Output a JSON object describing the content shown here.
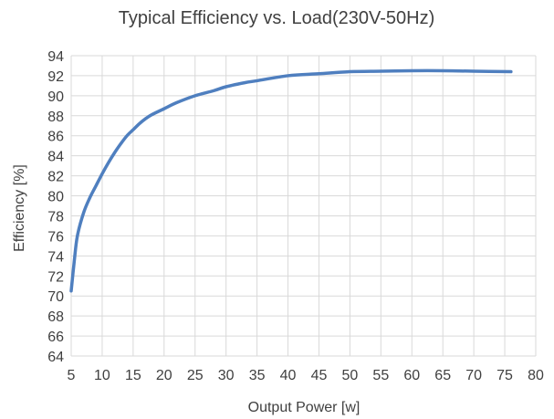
{
  "chart_data": {
    "type": "line",
    "title": "Typical Efficiency vs. Load(230V-50Hz)",
    "xlabel": "Output Power [w]",
    "ylabel": "Efficiency [%]",
    "xlim": [
      5,
      80
    ],
    "ylim": [
      64,
      94
    ],
    "x_ticks": [
      5,
      10,
      15,
      20,
      25,
      30,
      35,
      40,
      45,
      50,
      55,
      60,
      65,
      70,
      75,
      80
    ],
    "y_ticks": [
      64,
      66,
      68,
      70,
      72,
      74,
      76,
      78,
      80,
      82,
      84,
      86,
      88,
      90,
      92,
      94
    ],
    "grid": true,
    "line_color": "#4f7fbf",
    "series": [
      {
        "x": [
          5,
          5.5,
          6,
          7,
          8,
          9,
          10,
          11,
          12,
          13,
          14,
          15,
          16,
          17,
          18,
          20,
          22,
          25,
          28,
          30,
          33,
          35,
          40,
          45,
          50,
          55,
          60,
          65,
          70,
          76
        ],
        "y": [
          70.5,
          73.5,
          76.0,
          78.3,
          79.8,
          81.0,
          82.2,
          83.3,
          84.3,
          85.2,
          86.0,
          86.6,
          87.2,
          87.7,
          88.1,
          88.7,
          89.3,
          90.0,
          90.5,
          90.9,
          91.3,
          91.5,
          92.0,
          92.2,
          92.4,
          92.45,
          92.5,
          92.5,
          92.45,
          92.4
        ]
      }
    ]
  }
}
